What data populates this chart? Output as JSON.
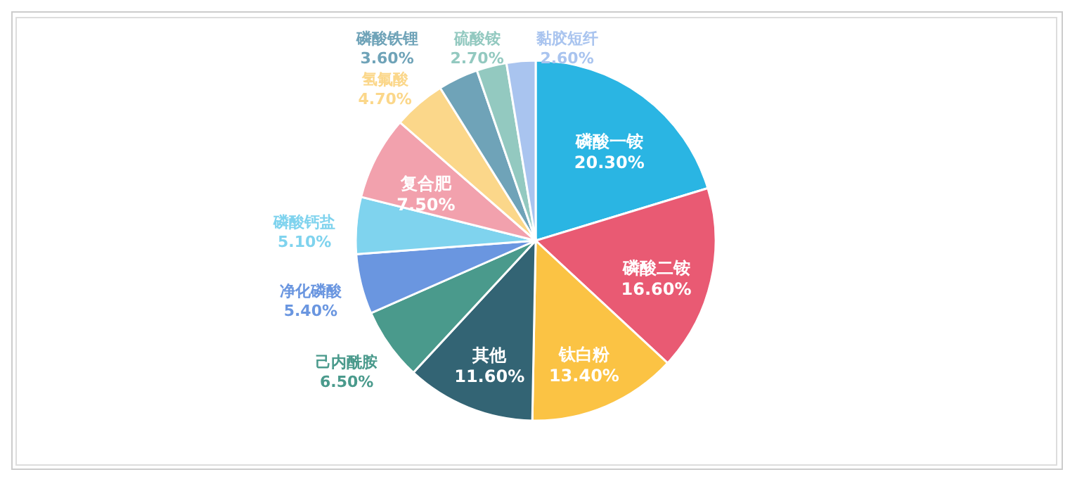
{
  "chart_data": {
    "type": "pie",
    "categories": [
      "磷酸一铵",
      "磷酸二铵",
      "钛白粉",
      "其他",
      "己内酰胺",
      "净化磷酸",
      "磷酸钙盐",
      "复合肥",
      "氢氟酸",
      "磷酸铁锂",
      "硫酸铵",
      "黏胶短纤"
    ],
    "values": [
      20.3,
      16.6,
      13.4,
      11.6,
      6.5,
      5.4,
      5.1,
      7.5,
      4.7,
      3.6,
      2.7,
      2.6
    ],
    "value_labels": [
      "20.30%",
      "16.60%",
      "13.40%",
      "11.60%",
      "6.50%",
      "5.40%",
      "5.10%",
      "7.50%",
      "4.70%",
      "3.60%",
      "2.70%",
      "2.60%"
    ],
    "colors": [
      "#2ab5e3",
      "#e95a73",
      "#fbc344",
      "#336474",
      "#4a9a8c",
      "#6a96e0",
      "#7fd3ee",
      "#f2a1ad",
      "#fbd78a",
      "#6fa3b8",
      "#93c9c0",
      "#a9c4ef"
    ]
  }
}
